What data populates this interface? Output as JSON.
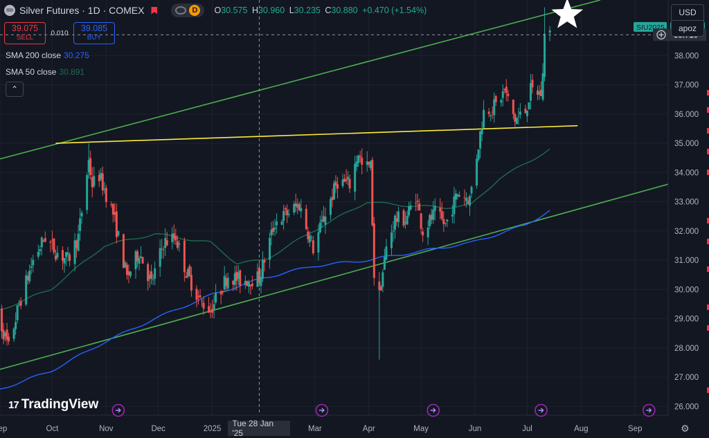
{
  "header": {
    "symbol_title": "Silver Futures · 1D · COMEX",
    "mode_badge": "D",
    "ohlc": [
      {
        "k": "O",
        "v": "30.575"
      },
      {
        "k": "H",
        "v": "30.960"
      },
      {
        "k": "L",
        "v": "30.235"
      },
      {
        "k": "C",
        "v": "30.880"
      },
      {
        "k": "",
        "v": "+0.470 (+1.54%)"
      }
    ]
  },
  "trade": {
    "sell_price": "39.075",
    "sell_label": "SELL",
    "spread": "0.010",
    "buy_price": "39.085",
    "buy_label": "BUY"
  },
  "indicators": [
    {
      "name": "SMA 200 close",
      "value": "30.275",
      "color": "#2962ff"
    },
    {
      "name": "SMA 50 close",
      "value": "30.891",
      "color": "#1e6b4f"
    }
  ],
  "collapse_glyph": "⌃",
  "currency": {
    "currency": "USD",
    "unit": "apoz"
  },
  "watermark": {
    "logo": "17",
    "text": "TradingView"
  },
  "settings_glyph": "⚙",
  "colors": {
    "bull": "#26a69a",
    "bear": "#ef5350",
    "channel": "#4caf50",
    "resistance": "#ffeb3b",
    "sma200": "#2962ff",
    "sma50": "#1e6b4f",
    "background": "#131722",
    "grid": "#1e222d",
    "text": "#d1d4dc",
    "axis_text": "#b2b5be"
  },
  "chart_data": {
    "type": "candlestick",
    "title": "",
    "y_axis": {
      "min": 25.7,
      "max": 39.9,
      "ticks": [
        26.0,
        27.0,
        28.0,
        29.0,
        30.0,
        31.0,
        32.0,
        33.0,
        34.0,
        35.0,
        36.0,
        37.0,
        38.0
      ],
      "tick_labels": [
        "26.000",
        "27.000",
        "28.000",
        "29.000",
        "30.000",
        "31.000",
        "32.000",
        "33.000",
        "34.000",
        "35.000",
        "36.000",
        "37.000",
        "38.000"
      ]
    },
    "x_axis": {
      "start": "2024-09-01",
      "end": "2025-09-20",
      "labels": [
        {
          "label": "Sep",
          "date": "2024-09-01"
        },
        {
          "label": "Oct",
          "date": "2024-10-01"
        },
        {
          "label": "Nov",
          "date": "2024-11-01"
        },
        {
          "label": "Dec",
          "date": "2024-12-01"
        },
        {
          "label": "2025",
          "date": "2025-01-01"
        },
        {
          "label": "Mar",
          "date": "2025-03-01"
        },
        {
          "label": "Apr",
          "date": "2025-04-01"
        },
        {
          "label": "May",
          "date": "2025-05-01"
        },
        {
          "label": "Jun",
          "date": "2025-06-01"
        },
        {
          "label": "Jul",
          "date": "2025-07-01"
        },
        {
          "label": "Aug",
          "date": "2025-08-01"
        },
        {
          "label": "Sep",
          "date": "2025-09-01"
        }
      ],
      "crosshair_label": "Tue 28 Jan '25",
      "crosshair_date": "2025-01-28",
      "event_markers": [
        "2024-11-08",
        "2025-03-05",
        "2025-05-08",
        "2025-07-09",
        "2025-09-09"
      ]
    },
    "price_labels": [
      {
        "text": "SIU2025",
        "value": 38.955,
        "color": "#26a69a",
        "text_color": "#131722"
      },
      {
        "text": "38.955",
        "value": 38.955,
        "color": "#26a69a",
        "text_color": "#131722"
      },
      {
        "text": "38.710",
        "value": 38.71,
        "color": "#2a2e39",
        "text_color": "#d1d4dc"
      }
    ],
    "crosshair_price": 38.71,
    "anchors": [
      [
        "2024-08-28",
        29.6
      ],
      [
        "2024-09-06",
        28.0
      ],
      [
        "2024-09-12",
        29.5
      ],
      [
        "2024-09-20",
        31.0
      ],
      [
        "2024-09-27",
        31.8
      ],
      [
        "2024-10-03",
        31.3
      ],
      [
        "2024-10-10",
        31.0
      ],
      [
        "2024-10-16",
        31.8
      ],
      [
        "2024-10-22",
        34.4
      ],
      [
        "2024-10-24",
        33.6
      ],
      [
        "2024-10-28",
        33.9
      ],
      [
        "2024-11-05",
        32.6
      ],
      [
        "2024-11-13",
        30.4
      ],
      [
        "2024-11-20",
        31.3
      ],
      [
        "2024-11-27",
        30.2
      ],
      [
        "2024-12-04",
        31.6
      ],
      [
        "2024-12-11",
        31.8
      ],
      [
        "2024-12-17",
        30.6
      ],
      [
        "2024-12-25",
        29.6
      ],
      [
        "2024-12-31",
        29.3
      ],
      [
        "2025-01-10",
        30.5
      ],
      [
        "2025-01-17",
        30.3
      ],
      [
        "2025-01-28",
        30.4
      ],
      [
        "2025-02-06",
        32.3
      ],
      [
        "2025-02-13",
        32.6
      ],
      [
        "2025-02-20",
        32.9
      ],
      [
        "2025-02-28",
        31.4
      ],
      [
        "2025-03-07",
        32.6
      ],
      [
        "2025-03-14",
        33.7
      ],
      [
        "2025-03-21",
        33.6
      ],
      [
        "2025-03-26",
        34.7
      ],
      [
        "2025-03-28",
        34.2
      ],
      [
        "2025-04-02",
        34.2
      ],
      [
        "2025-04-04",
        30.5
      ],
      [
        "2025-04-07",
        29.8
      ],
      [
        "2025-04-11",
        31.4
      ],
      [
        "2025-04-16",
        32.4
      ],
      [
        "2025-04-22",
        32.4
      ],
      [
        "2025-04-28",
        33.2
      ],
      [
        "2025-05-02",
        32.0
      ],
      [
        "2025-05-09",
        32.6
      ],
      [
        "2025-05-15",
        32.2
      ],
      [
        "2025-05-22",
        33.3
      ],
      [
        "2025-05-29",
        33.1
      ],
      [
        "2025-06-05",
        35.7
      ],
      [
        "2025-06-06",
        36.1
      ],
      [
        "2025-06-13",
        36.3
      ],
      [
        "2025-06-18",
        36.8
      ],
      [
        "2025-06-24",
        35.8
      ],
      [
        "2025-06-30",
        36.1
      ],
      [
        "2025-07-03",
        36.8
      ],
      [
        "2025-07-09",
        36.7
      ],
      [
        "2025-07-10",
        37.3
      ],
      [
        "2025-07-11",
        38.9
      ],
      [
        "2025-07-14",
        38.8
      ]
    ],
    "sma200": [
      [
        "2024-08-28",
        26.5
      ],
      [
        "2024-09-30",
        27.2
      ],
      [
        "2024-10-31",
        28.2
      ],
      [
        "2024-11-29",
        29.0
      ],
      [
        "2024-12-31",
        29.8
      ],
      [
        "2025-01-31",
        30.4
      ],
      [
        "2025-02-28",
        30.8
      ],
      [
        "2025-03-31",
        31.0
      ],
      [
        "2025-04-30",
        31.3
      ],
      [
        "2025-05-30",
        31.6
      ],
      [
        "2025-06-30",
        32.2
      ],
      [
        "2025-07-14",
        32.7
      ]
    ],
    "sma50": [
      [
        "2024-08-28",
        29.2
      ],
      [
        "2024-09-30",
        30.0
      ],
      [
        "2024-10-31",
        31.5
      ],
      [
        "2024-11-29",
        31.9
      ],
      [
        "2024-12-31",
        31.6
      ],
      [
        "2025-01-15",
        30.9
      ],
      [
        "2025-01-31",
        31.0
      ],
      [
        "2025-02-28",
        32.0
      ],
      [
        "2025-03-31",
        33.0
      ],
      [
        "2025-04-15",
        32.9
      ],
      [
        "2025-05-15",
        32.8
      ],
      [
        "2025-05-30",
        32.9
      ],
      [
        "2025-06-15",
        33.8
      ],
      [
        "2025-06-30",
        34.3
      ],
      [
        "2025-07-14",
        34.8
      ]
    ],
    "trendlines": [
      {
        "name": "upper-channel",
        "color": "#4caf50",
        "from": [
          "2024-08-28",
          34.4
        ],
        "to": [
          "2025-08-12",
          39.9
        ]
      },
      {
        "name": "lower-channel",
        "color": "#4caf50",
        "from": [
          "2024-08-28",
          27.2
        ],
        "to": [
          "2025-09-20",
          33.6
        ]
      },
      {
        "name": "resistance",
        "color": "#ffeb3b",
        "from": [
          "2024-10-03",
          35.0
        ],
        "to": [
          "2025-07-30",
          35.6
        ]
      }
    ],
    "star_marker": {
      "date": "2025-07-24",
      "value": 39.4
    }
  }
}
